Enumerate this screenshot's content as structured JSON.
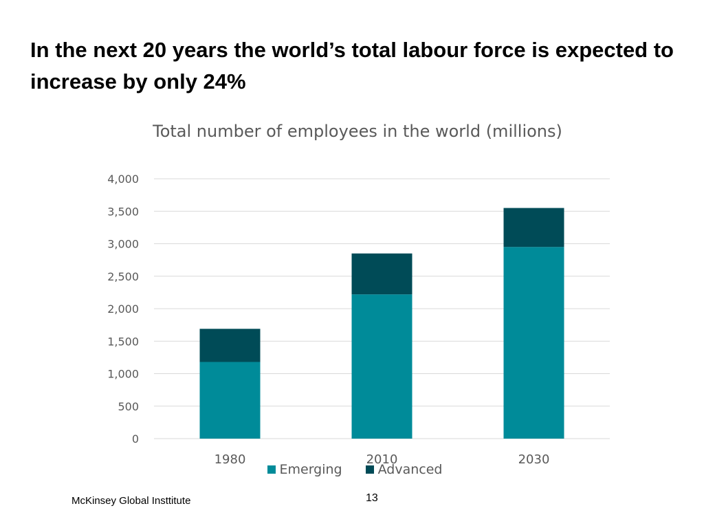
{
  "slide": {
    "title": "In the next 20 years the world’s total labour force is expected to increase by only 24%",
    "footer_source": "McKinsey Global Insttitute",
    "page_number": "13"
  },
  "chart_data": {
    "type": "bar",
    "stacked": true,
    "title": "Total number of employees in the world (millions)",
    "categories": [
      "1980",
      "2010",
      "2030"
    ],
    "series": [
      {
        "name": "Emerging",
        "values": [
          1180,
          2220,
          2950
        ],
        "color": "#008B99"
      },
      {
        "name": "Advanced",
        "values": [
          510,
          630,
          600
        ],
        "color": "#004B57"
      }
    ],
    "ylim": [
      0,
      4000
    ],
    "yticks": [
      0,
      500,
      1000,
      1500,
      2000,
      2500,
      3000,
      3500,
      4000
    ],
    "ytick_labels": [
      "0",
      "500",
      "1,000",
      "1,500",
      "2,000",
      "2,500",
      "3,000",
      "3,500",
      "4,000"
    ],
    "grid": true,
    "legend_position": "bottom",
    "xlabel": "",
    "ylabel": ""
  }
}
